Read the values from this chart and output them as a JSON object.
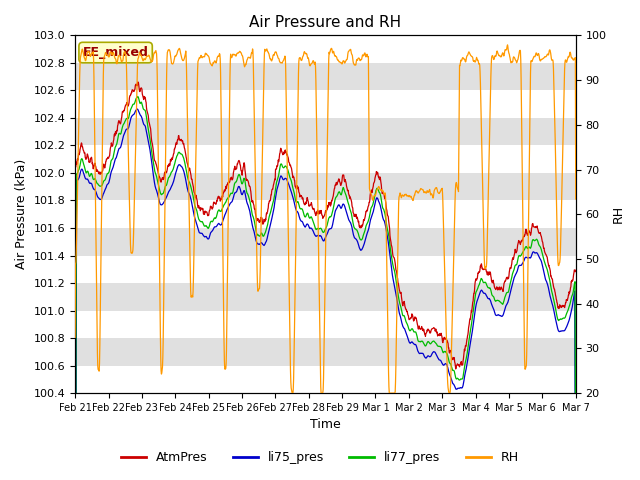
{
  "title": "Air Pressure and RH",
  "xlabel": "Time",
  "ylabel_left": "Air Pressure (kPa)",
  "ylabel_right": "RH",
  "ylim_left": [
    100.4,
    103.0
  ],
  "ylim_right": [
    20,
    100
  ],
  "yticks_left": [
    100.4,
    100.6,
    100.8,
    101.0,
    101.2,
    101.4,
    101.6,
    101.8,
    102.0,
    102.2,
    102.4,
    102.6,
    102.8,
    103.0
  ],
  "yticks_right": [
    20,
    30,
    40,
    50,
    60,
    70,
    80,
    90,
    100
  ],
  "colors": {
    "AtmPres": "#cc0000",
    "li75_pres": "#0000cc",
    "li77_pres": "#00bb00",
    "RH": "#ff9900"
  },
  "legend_labels": [
    "AtmPres",
    "li75_pres",
    "li77_pres",
    "RH"
  ],
  "annotation_text": "EE_mixed",
  "annotation_bg": "#ffffcc",
  "annotation_border": "#aaaa00",
  "background_color": "#ffffff",
  "strip_colors": [
    "#ffffff",
    "#e0e0e0"
  ],
  "title_fontsize": 11,
  "axis_fontsize": 9,
  "tick_fontsize": 8,
  "legend_fontsize": 9,
  "figsize": [
    6.4,
    4.8
  ],
  "dpi": 100,
  "day_labels": [
    "Feb 21",
    "Feb 22",
    "Feb 23",
    "Feb 24",
    "Feb 25",
    "Feb 26",
    "Feb 27",
    "Feb 28",
    "Feb 29",
    "Mar 1",
    "Mar 2",
    "Mar 3",
    "Mar 4",
    "Mar 5",
    "Mar 6",
    "Mar 7"
  ]
}
